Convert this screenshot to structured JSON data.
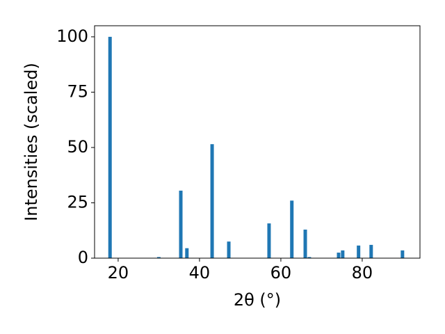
{
  "chart_data": {
    "type": "bar",
    "xlabel": "2θ (°)",
    "ylabel": "Intensities (scaled)",
    "x": [
      18.0,
      30.0,
      35.4,
      36.9,
      43.1,
      47.2,
      57.1,
      62.7,
      66.0,
      67.0,
      74.2,
      75.2,
      79.1,
      82.2,
      89.9
    ],
    "values": [
      100,
      0.5,
      30.5,
      4.5,
      51.5,
      7.5,
      15.7,
      26,
      12.9,
      0.5,
      2.5,
      3.5,
      5.7,
      6,
      3.5
    ],
    "color": "#1f77b4",
    "xlim": [
      14.2,
      94.2
    ],
    "xticks": [
      20,
      40,
      60,
      80
    ],
    "ylim": [
      0,
      105
    ],
    "yticks": [
      0,
      25,
      50,
      75,
      100
    ]
  }
}
